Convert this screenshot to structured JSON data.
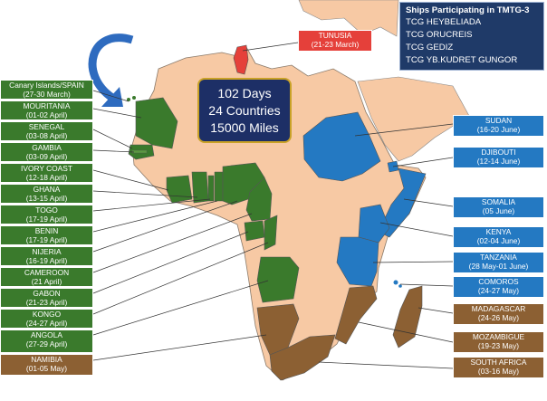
{
  "ships": {
    "title": "Ships Participating in TMTG-3",
    "list": [
      "TCG HEYBELIADA",
      "TCG ORUCREIS",
      "TCG GEDIZ",
      "TCG YB.KUDRET GUNGOR"
    ]
  },
  "stats": {
    "days": "102 Days",
    "countries": "24 Countries",
    "miles": "15000 Miles"
  },
  "colors": {
    "land": "#f7c9a4",
    "green": "#3a7a2c",
    "blue": "#2479c2",
    "brown": "#8c6033",
    "red": "#e5403a",
    "navy": "#1f3a68",
    "arrow": "#2e6bbf"
  },
  "labels": {
    "tunisia": {
      "name": "TUNUSIA",
      "dates": "(21-23 March)"
    },
    "canary": {
      "name": "Canary Islands/SPAIN",
      "dates": "(27-30 March)"
    },
    "mauritania": {
      "name": "MOURITANIA",
      "dates": "(01-02 April)"
    },
    "senegal": {
      "name": "SENEGAL",
      "dates": "(03-08 April)"
    },
    "gambia": {
      "name": "GAMBIA",
      "dates": "(03-09 April)"
    },
    "ivory": {
      "name": "IVORY COAST",
      "dates": "(12-18 April)"
    },
    "ghana": {
      "name": "GHANA",
      "dates": "(13-15 April)"
    },
    "togo": {
      "name": "TOGO",
      "dates": "(17-19 April)"
    },
    "benin": {
      "name": "BENIN",
      "dates": "(17-19 April)"
    },
    "nigeria": {
      "name": "NIJERIA",
      "dates": "(16-19 April)"
    },
    "cameroon": {
      "name": "CAMEROON",
      "dates": "(21 April)"
    },
    "gabon": {
      "name": "GABON",
      "dates": "(21-23 April)"
    },
    "kongo": {
      "name": "KONGO",
      "dates": "(24-27 April)"
    },
    "angola": {
      "name": "ANGOLA",
      "dates": "(27-29 April)"
    },
    "namibia": {
      "name": "NAMIBIA",
      "dates": "(01-05 May)"
    },
    "sudan": {
      "name": "SUDAN",
      "dates": "(16-20 June)"
    },
    "djibouti": {
      "name": "DJIBOUTI",
      "dates": "(12-14 June)"
    },
    "somalia": {
      "name": "SOMALIA",
      "dates": "(05 June)"
    },
    "kenya": {
      "name": "KENYA",
      "dates": "(02-04 June)"
    },
    "tanzania": {
      "name": "TANZANIA",
      "dates": "(28 May-01 June)"
    },
    "comoros": {
      "name": "COMOROS",
      "dates": "(24-27 May)"
    },
    "madagascar": {
      "name": "MADAGASCAR",
      "dates": "(24-26 May)"
    },
    "mozambique": {
      "name": "MOZAMBIGUE",
      "dates": "(19-23 May)"
    },
    "southafrica": {
      "name": "SOUTH AFRICA",
      "dates": "(03-16 May)"
    }
  }
}
